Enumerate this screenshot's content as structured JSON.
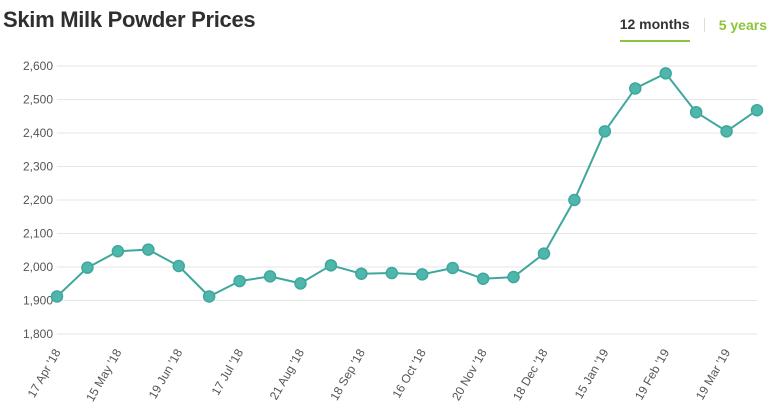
{
  "header": {
    "title": "Skim Milk Powder Prices",
    "tabs": [
      {
        "label": "12 months",
        "active": true
      },
      {
        "label": "5 years",
        "active": false
      }
    ]
  },
  "colors": {
    "line": "#3fa79d",
    "marker": "#4fb6ab",
    "accent": "#8cc43c",
    "grid": "#e6e6e6"
  },
  "chart_data": {
    "type": "line",
    "title": "Skim Milk Powder Prices",
    "xlabel": "",
    "ylabel": "",
    "ylim": [
      1800,
      2600
    ],
    "yticks": [
      1800,
      1900,
      2000,
      2100,
      2200,
      2300,
      2400,
      2500,
      2600
    ],
    "ytick_labels": [
      "1,800",
      "1,900",
      "2,000",
      "2,100",
      "2,200",
      "2,300",
      "2,400",
      "2,500",
      "2,600"
    ],
    "x_labels": [
      "17 Apr '18",
      "15 May '18",
      "19 Jun '18",
      "17 Jul '18",
      "21 Aug '18",
      "18 Sep '18",
      "16 Oct '18",
      "20 Nov '18",
      "18 Dec '18",
      "15 Jan '19",
      "19 Feb '19",
      "19 Mar '19"
    ],
    "grid": true,
    "series": [
      {
        "values": [
          1912,
          1998,
          2047,
          2052,
          2003,
          1912,
          1958,
          1972,
          1951,
          2005,
          1980,
          1982,
          1978,
          1997,
          1965,
          1970,
          2040,
          2200,
          2405,
          2533,
          2578,
          2462,
          2405,
          2468
        ]
      }
    ]
  }
}
